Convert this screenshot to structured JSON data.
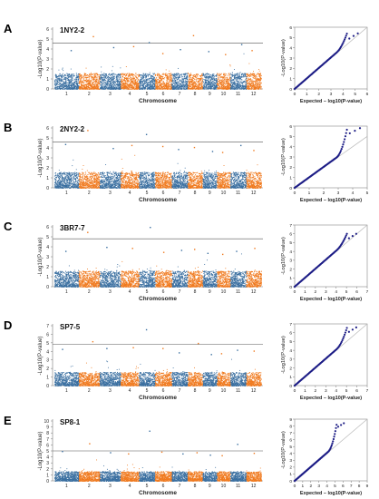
{
  "figure": {
    "series_colors": [
      "#3a6fa0",
      "#f07a1f"
    ],
    "threshold_color": "#555555",
    "qq_point_color": "#1d1d86",
    "qq_diagonal_color": "#b8b8b8",
    "chromosome_axis_label": "Chromosome",
    "manhattan_ylabel": "-Log10(P-value)",
    "qq_ylabel": "-Log10(P-value)",
    "qq_xlabel": "Expected – log10(P-value)"
  },
  "chart_data": [
    {
      "panel": "A",
      "type": "scatter",
      "subtype": "manhattan",
      "title": "1NY2-2",
      "xlabel": "Chromosome",
      "ylabel": "-Log10(P-value)",
      "categories": [
        "1",
        "2",
        "3",
        "4",
        "5",
        "6",
        "7",
        "8",
        "9",
        "10",
        "11",
        "12"
      ],
      "ylim": [
        0,
        6
      ],
      "yticks": [
        0,
        1,
        2,
        3,
        4,
        5,
        6
      ],
      "threshold": 4.6,
      "peaks": [
        3.9,
        5.3,
        4.2,
        4.3,
        4.7,
        3.6,
        4.0,
        5.4,
        3.8,
        3.5,
        4.5,
        3.9
      ]
    },
    {
      "panel": "A",
      "type": "scatter",
      "subtype": "qq",
      "xlabel": "Expected – log10(P-value)",
      "ylabel": "-Log10(P-value)",
      "xlim": [
        0,
        6
      ],
      "ylim": [
        0,
        6
      ],
      "xticks": [
        0,
        1,
        2,
        3,
        4,
        5,
        6
      ],
      "yticks": [
        0,
        1,
        2,
        3,
        4,
        5,
        6
      ],
      "observed_max": 5.4
    },
    {
      "panel": "B",
      "type": "scatter",
      "subtype": "manhattan",
      "title": "2NY2-2",
      "xlabel": "Chromosome",
      "ylabel": "-Log10(P-value)",
      "categories": [
        "1",
        "2",
        "3",
        "4",
        "5",
        "6",
        "7",
        "8",
        "9",
        "10",
        "11",
        "12"
      ],
      "ylim": [
        0,
        6
      ],
      "yticks": [
        0,
        1,
        2,
        3,
        4,
        5,
        6
      ],
      "threshold": 4.6,
      "peaks": [
        4.4,
        5.8,
        4.0,
        4.3,
        5.4,
        4.2,
        3.9,
        4.1,
        3.7,
        3.6,
        4.3,
        3.8
      ]
    },
    {
      "panel": "B",
      "type": "scatter",
      "subtype": "qq",
      "xlabel": "Expected – log10(P-value)",
      "ylabel": "-Log10(P-value)",
      "xlim": [
        0,
        5
      ],
      "ylim": [
        0,
        6
      ],
      "xticks": [
        0,
        1,
        2,
        3,
        4,
        5
      ],
      "yticks": [
        0,
        1,
        2,
        3,
        4,
        5,
        6
      ],
      "observed_max": 5.8
    },
    {
      "panel": "C",
      "type": "scatter",
      "subtype": "manhattan",
      "title": "3BR7-7",
      "xlabel": "Chromosome",
      "ylabel": "-Log10(P-value)",
      "categories": [
        "1",
        "2",
        "3",
        "4",
        "5",
        "6",
        "7",
        "8",
        "9",
        "10",
        "11",
        "12"
      ],
      "ylim": [
        0,
        6
      ],
      "yticks": [
        0,
        1,
        2,
        3,
        4,
        5,
        6
      ],
      "threshold": 4.8,
      "peaks": [
        3.6,
        5.5,
        4.0,
        3.9,
        6.0,
        3.5,
        3.7,
        3.8,
        3.4,
        3.3,
        3.6,
        3.9
      ]
    },
    {
      "panel": "C",
      "type": "scatter",
      "subtype": "qq",
      "xlabel": "Expected – log10(P-value)",
      "ylabel": "-Log10(P-value)",
      "xlim": [
        0,
        7
      ],
      "ylim": [
        0,
        7
      ],
      "xticks": [
        0,
        1,
        2,
        3,
        4,
        5,
        6,
        7
      ],
      "yticks": [
        0,
        1,
        2,
        3,
        4,
        5,
        6,
        7
      ],
      "observed_max": 6.0
    },
    {
      "panel": "D",
      "type": "scatter",
      "subtype": "manhattan",
      "title": "SP7-5",
      "xlabel": "Chromosome",
      "ylabel": "-Log10(P-value)",
      "categories": [
        "1",
        "2",
        "3",
        "4",
        "5",
        "6",
        "7",
        "8",
        "9",
        "10",
        "11",
        "12"
      ],
      "ylim": [
        0,
        7
      ],
      "yticks": [
        0,
        1,
        2,
        3,
        4,
        5,
        6,
        7
      ],
      "threshold": 4.8,
      "peaks": [
        4.3,
        5.2,
        4.4,
        4.5,
        6.6,
        4.4,
        3.9,
        5.0,
        3.7,
        3.8,
        4.2,
        4.1
      ]
    },
    {
      "panel": "D",
      "type": "scatter",
      "subtype": "qq",
      "xlabel": "Expected – log10(P-value)",
      "ylabel": "-Log10(P-value)",
      "xlim": [
        0,
        7
      ],
      "ylim": [
        0,
        7
      ],
      "xticks": [
        0,
        1,
        2,
        3,
        4,
        5,
        6,
        7
      ],
      "yticks": [
        0,
        1,
        2,
        3,
        4,
        5,
        6,
        7
      ],
      "observed_max": 6.6
    },
    {
      "panel": "E",
      "type": "scatter",
      "subtype": "manhattan",
      "title": "SP8-1",
      "xlabel": "Chromosome",
      "ylabel": "-Log10(P-value)",
      "categories": [
        "1",
        "2",
        "3",
        "4",
        "5",
        "6",
        "7",
        "8",
        "9",
        "10",
        "11",
        "12"
      ],
      "ylim": [
        0,
        10
      ],
      "yticks": [
        0,
        1,
        2,
        3,
        4,
        5,
        6,
        7,
        8,
        9,
        10
      ],
      "threshold": 5.0,
      "peaks": [
        5.0,
        6.3,
        4.8,
        4.6,
        8.4,
        4.9,
        4.6,
        4.8,
        4.4,
        4.3,
        6.2,
        4.7
      ]
    },
    {
      "panel": "E",
      "type": "scatter",
      "subtype": "qq",
      "xlabel": "Expected – log10(P-value)",
      "ylabel": "-Log10(P-value)",
      "xlim": [
        0,
        9
      ],
      "ylim": [
        0,
        9
      ],
      "xticks": [
        0,
        1,
        2,
        3,
        4,
        5,
        6,
        7,
        8,
        9
      ],
      "yticks": [
        0,
        1,
        2,
        3,
        4,
        5,
        6,
        7,
        8,
        9
      ],
      "observed_max": 8.4
    }
  ]
}
